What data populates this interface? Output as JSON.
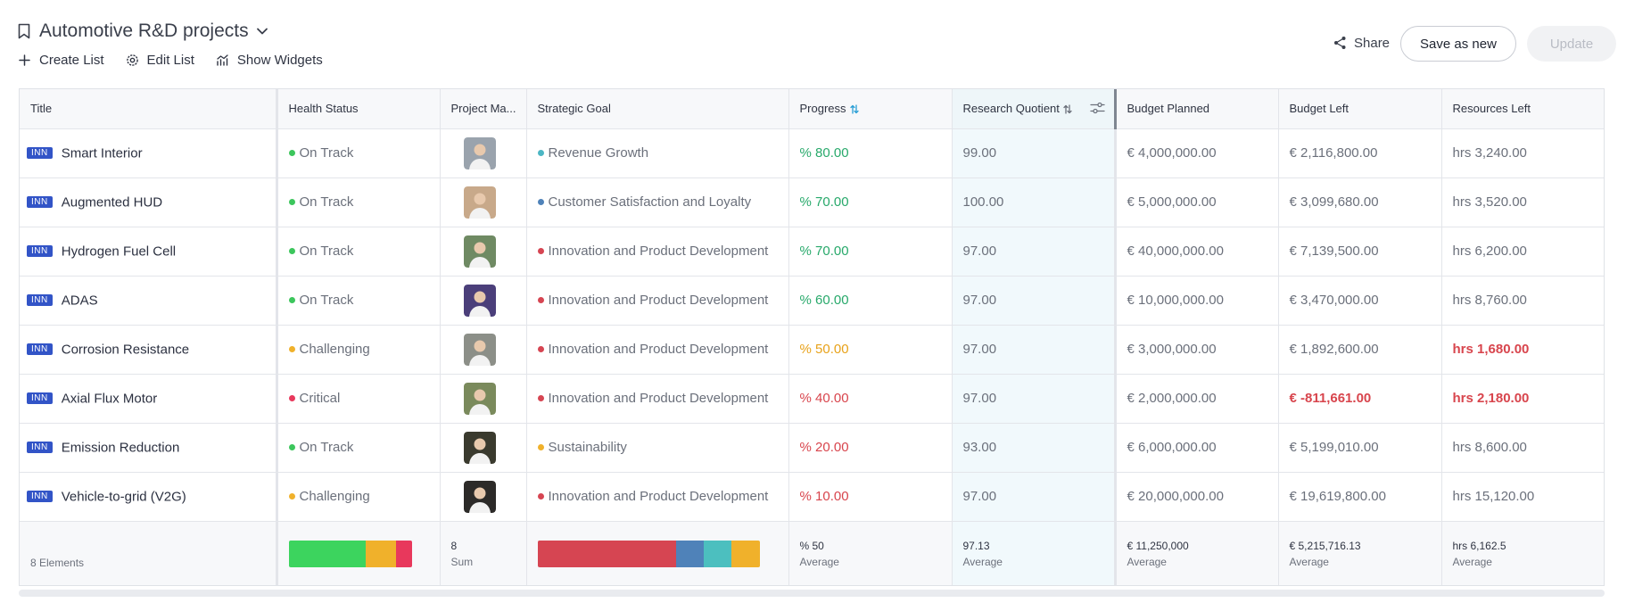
{
  "header": {
    "title": "Automotive R&D projects",
    "actions": [
      "Create List",
      "Edit List",
      "Show Widgets"
    ],
    "share_label": "Share",
    "save_label": "Save as new",
    "update_label": "Update"
  },
  "columns": [
    "Title",
    "Health Status",
    "Project Ma...",
    "Strategic Goal",
    "Progress",
    "Research Quotient",
    "Budget Planned",
    "Budget Left",
    "Resources Left"
  ],
  "colors": {
    "on_track": "#3cc65c",
    "challenging": "#f0b12b",
    "critical": "#e8385c",
    "green_text": "#28a96b",
    "amber_text": "#e8a21a",
    "red_text": "#d8454d",
    "goal_revenue": "#4cb6c4",
    "goal_customer": "#4f82b9",
    "goal_innovation": "#d64552",
    "goal_sustainability": "#f0b12b"
  },
  "rows": [
    {
      "tag": "INN",
      "title": "Smart Interior",
      "health": "On Track",
      "health_color": "#3cc65c",
      "avatar_color": "#9aa3ad",
      "goal": "Revenue Growth",
      "goal_color": "#4cb6c4",
      "progress": "% 80.00",
      "progress_color": "#28a96b",
      "rq": "99.00",
      "budget_planned": "€ 4,000,000.00",
      "budget_left": "€ 2,116,800.00",
      "budget_left_color": "#6b707b",
      "resources_left": "hrs 3,240.00",
      "resources_left_color": "#6b707b"
    },
    {
      "tag": "INN",
      "title": "Augmented HUD",
      "health": "On Track",
      "health_color": "#3cc65c",
      "avatar_color": "#c8a98a",
      "goal": "Customer Satisfaction and Loyalty",
      "goal_color": "#4f82b9",
      "progress": "% 70.00",
      "progress_color": "#28a96b",
      "rq": "100.00",
      "budget_planned": "€ 5,000,000.00",
      "budget_left": "€ 3,099,680.00",
      "budget_left_color": "#6b707b",
      "resources_left": "hrs 3,520.00",
      "resources_left_color": "#6b707b"
    },
    {
      "tag": "INN",
      "title": "Hydrogen Fuel Cell",
      "health": "On Track",
      "health_color": "#3cc65c",
      "avatar_color": "#6f8a63",
      "goal": "Innovation and Product Development",
      "goal_color": "#d64552",
      "progress": "% 70.00",
      "progress_color": "#28a96b",
      "rq": "97.00",
      "budget_planned": "€ 40,000,000.00",
      "budget_left": "€ 7,139,500.00",
      "budget_left_color": "#6b707b",
      "resources_left": "hrs 6,200.00",
      "resources_left_color": "#6b707b"
    },
    {
      "tag": "INN",
      "title": "ADAS",
      "health": "On Track",
      "health_color": "#3cc65c",
      "avatar_color": "#4b3f7a",
      "goal": "Innovation and Product Development",
      "goal_color": "#d64552",
      "progress": "% 60.00",
      "progress_color": "#28a96b",
      "rq": "97.00",
      "budget_planned": "€ 10,000,000.00",
      "budget_left": "€ 3,470,000.00",
      "budget_left_color": "#6b707b",
      "resources_left": "hrs 8,760.00",
      "resources_left_color": "#6b707b"
    },
    {
      "tag": "INN",
      "title": "Corrosion Resistance",
      "health": "Challenging",
      "health_color": "#f0b12b",
      "avatar_color": "#8c8f88",
      "goal": "Innovation and Product Development",
      "goal_color": "#d64552",
      "progress": "% 50.00",
      "progress_color": "#e8a21a",
      "rq": "97.00",
      "budget_planned": "€ 3,000,000.00",
      "budget_left": "€ 1,892,600.00",
      "budget_left_color": "#6b707b",
      "resources_left": "hrs 1,680.00",
      "resources_left_color": "#d8454d"
    },
    {
      "tag": "INN",
      "title": "Axial Flux Motor",
      "health": "Critical",
      "health_color": "#e8385c",
      "avatar_color": "#7a8a5c",
      "goal": "Innovation and Product Development",
      "goal_color": "#d64552",
      "progress": "% 40.00",
      "progress_color": "#d8454d",
      "rq": "97.00",
      "budget_planned": "€ 2,000,000.00",
      "budget_left": "€ -811,661.00",
      "budget_left_color": "#d8454d",
      "resources_left": "hrs 2,180.00",
      "resources_left_color": "#d8454d"
    },
    {
      "tag": "INN",
      "title": "Emission Reduction",
      "health": "On Track",
      "health_color": "#3cc65c",
      "avatar_color": "#3a3a2e",
      "goal": "Sustainability",
      "goal_color": "#f0b12b",
      "progress": "% 20.00",
      "progress_color": "#d8454d",
      "rq": "93.00",
      "budget_planned": "€ 6,000,000.00",
      "budget_left": "€ 5,199,010.00",
      "budget_left_color": "#6b707b",
      "resources_left": "hrs 8,600.00",
      "resources_left_color": "#6b707b"
    },
    {
      "tag": "INN",
      "title": "Vehicle-to-grid (V2G)",
      "health": "Challenging",
      "health_color": "#f0b12b",
      "avatar_color": "#2c2a28",
      "goal": "Innovation and Product Development",
      "goal_color": "#d64552",
      "progress": "% 10.00",
      "progress_color": "#d8454d",
      "rq": "97.00",
      "budget_planned": "€ 20,000,000.00",
      "budget_left": "€ 19,619,800.00",
      "budget_left_color": "#6b707b",
      "resources_left": "hrs 15,120.00",
      "resources_left_color": "#6b707b"
    }
  ],
  "footer": {
    "count": "8 Elements",
    "health_dist": [
      {
        "label": "On Track",
        "count": 5,
        "color": "#3cd45e"
      },
      {
        "label": "Challenging",
        "count": 2,
        "color": "#f0b12b"
      },
      {
        "label": "Critical",
        "count": 1,
        "color": "#e8385c"
      }
    ],
    "pm_value": "8",
    "pm_label": "Sum",
    "goal_dist": [
      {
        "label": "Innovation and Product Development",
        "count": 5,
        "color": "#d64552"
      },
      {
        "label": "Customer Satisfaction and Loyalty",
        "count": 1,
        "color": "#4f82b9"
      },
      {
        "label": "Revenue Growth",
        "count": 1,
        "color": "#4cbfbf"
      },
      {
        "label": "Sustainability",
        "count": 1,
        "color": "#f0b12b"
      }
    ],
    "progress_value": "% 50",
    "rq_value": "97.13",
    "budget_planned_value": "€ 11,250,000",
    "budget_left_value": "€ 5,215,716.13",
    "resources_left_value": "hrs 6,162.5",
    "avg_label": "Average"
  }
}
